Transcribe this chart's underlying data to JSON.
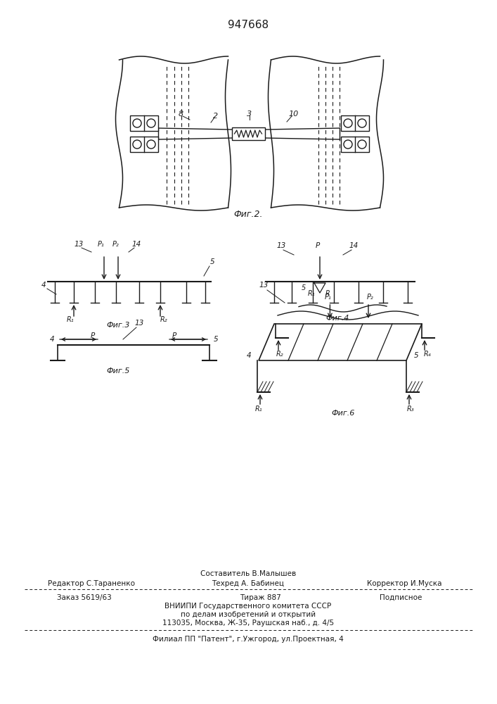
{
  "title": "947668",
  "fig2_caption": "Фиг.2.",
  "fig3_caption": "Фиг.3",
  "fig4_caption": "Фиг.4",
  "fig5_caption": "Фиг.5",
  "fig6_caption": "Фиг.6",
  "footer_line1": "Составитель В.Малышев",
  "footer_line2_left": "Редактор С.Тараненко",
  "footer_line2_mid": "Техред А. Бабинец",
  "footer_line2_right": "Корректор И.Муска",
  "footer_line3_left": "Заказ 5619/63",
  "footer_line3_mid": "Тираж 887",
  "footer_line3_right": "Подписное",
  "footer_line4": "ВНИИПИ Государственного комитета СССР",
  "footer_line5": "по делам изобретений и открытий",
  "footer_line6": "113035, Москва, Ж-35, Раушская наб., д. 4/5",
  "footer_line7": "Филиал ПП \"Патент\", г.Ужгород, ул.Проектная, 4",
  "bg_color": "#ffffff",
  "line_color": "#1a1a1a"
}
